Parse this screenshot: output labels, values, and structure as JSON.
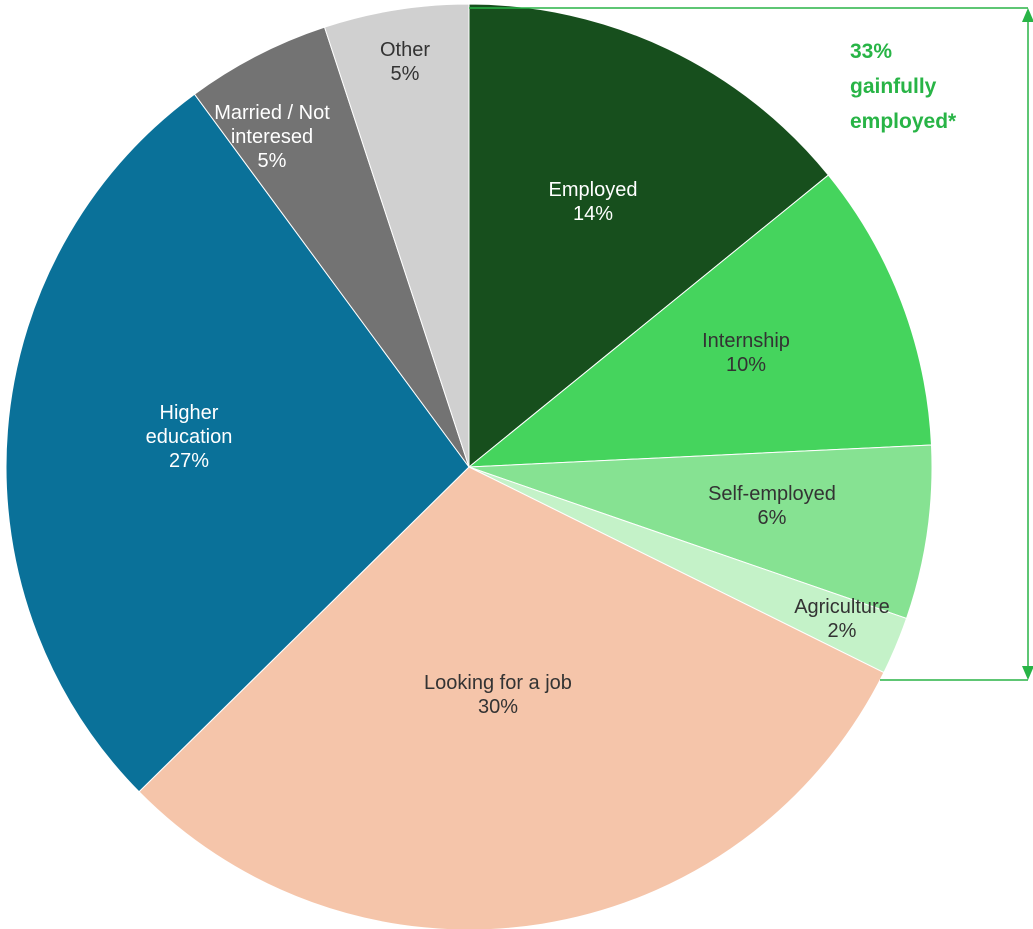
{
  "chart_data": {
    "type": "pie",
    "categories": [
      "Employed",
      "Internship",
      "Self-employed",
      "Agriculture",
      "Looking for a job",
      "Higher education",
      "Married / Not interesed",
      "Other"
    ],
    "values": [
      14,
      10,
      6,
      2,
      30,
      27,
      5,
      5
    ],
    "value_labels": [
      "14%",
      "10%",
      "6%",
      "2%",
      "30%",
      "27%",
      "5%",
      "5%"
    ],
    "colors": [
      "#174f1d",
      "#45d45d",
      "#86e292",
      "#c4f2c8",
      "#f5c5aa",
      "#0a7199",
      "#737373",
      "#d0d0d0"
    ],
    "annotation_lines": [
      "33%",
      "gainfully",
      "employed*"
    ],
    "annotation_color": "#28b446"
  }
}
